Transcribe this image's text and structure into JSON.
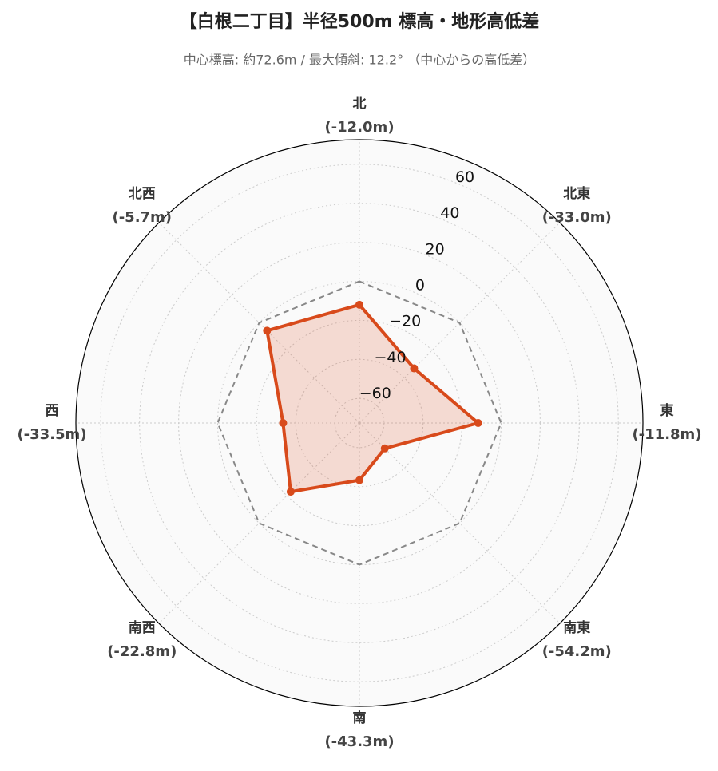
{
  "chart_data": {
    "type": "radar",
    "title": "【白根二丁目】半径500m 標高・地形高低差",
    "subtitle": "中心標高: 約72.6m / 最大傾斜: 12.2° （中心からの高低差）",
    "categories": [
      "北",
      "北東",
      "東",
      "南東",
      "南",
      "南西",
      "西",
      "北西"
    ],
    "values": [
      -12.0,
      -33.0,
      -11.8,
      -54.2,
      -43.3,
      -22.8,
      -33.5,
      -5.7
    ],
    "value_labels": [
      "(-12.0m)",
      "(-33.0m)",
      "(-11.8m)",
      "(-54.2m)",
      "(-43.3m)",
      "(-22.8m)",
      "(-33.5m)",
      "(-5.7m)"
    ],
    "color": "#d84a1b",
    "ylim": [
      -72.6,
      72.6
    ],
    "yticks": [
      {
        "value": -60,
        "label": "−60"
      },
      {
        "value": -40,
        "label": "−40"
      },
      {
        "value": -20,
        "label": "−20"
      },
      0,
      20,
      40,
      60
    ],
    "baseline": 0,
    "grid": true
  }
}
